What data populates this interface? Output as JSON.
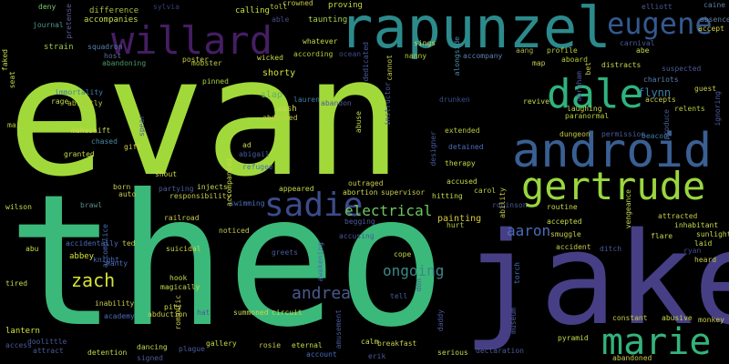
{
  "words": [
    {
      "text": "evan",
      "color": "#a2d93a"
    },
    {
      "text": "theo",
      "color": "#3bb97a"
    },
    {
      "text": "jake",
      "color": "#463f85"
    },
    {
      "text": "rapunzel",
      "color": "#2c8a8c"
    },
    {
      "text": "android",
      "color": "#3a5f92"
    },
    {
      "text": "willard",
      "color": "#451e63"
    },
    {
      "text": "eugene",
      "color": "#34598f"
    },
    {
      "text": "dale",
      "color": "#2fb37e"
    },
    {
      "text": "gertrude",
      "color": "#9ad63e"
    },
    {
      "text": "sadie",
      "color": "#3d4b8b"
    },
    {
      "text": "marie",
      "color": "#34b37b"
    },
    {
      "text": "zach",
      "color": "#d4e236"
    },
    {
      "text": "andrea",
      "color": "#4a5a8e"
    },
    {
      "text": "electrical",
      "color": "#6dc660"
    },
    {
      "text": "ongoing",
      "color": "#3c8a8a"
    },
    {
      "text": "aaron",
      "color": "#4a6dba"
    },
    {
      "text": "flynn",
      "color": "#3c7fa8"
    },
    {
      "text": "painting",
      "color": "#d4c93a"
    },
    {
      "text": "difference",
      "color": "#a8bf3b"
    },
    {
      "text": "accompanies",
      "color": "#c7d84a"
    },
    {
      "text": "calling",
      "color": "#c3e13a"
    },
    {
      "text": "proving",
      "color": "#c2d53c"
    },
    {
      "text": "elliott",
      "color": "#4a5a9a"
    },
    {
      "text": "caine",
      "color": "#5a7fa0"
    },
    {
      "text": "deny",
      "color": "#7fc96a"
    },
    {
      "text": "journal",
      "color": "#51958a"
    },
    {
      "text": "sylvia",
      "color": "#353f7a"
    },
    {
      "text": "toll",
      "color": "#b8c93a"
    },
    {
      "text": "able",
      "color": "#4a4a8a"
    },
    {
      "text": "taunting",
      "color": "#a7d04a"
    },
    {
      "text": "absence",
      "color": "#5f7fa2"
    },
    {
      "text": "accept",
      "color": "#d0d04a"
    },
    {
      "text": "carnival",
      "color": "#4a5a9a"
    },
    {
      "text": "abe",
      "color": "#c3d94a"
    },
    {
      "text": "aang",
      "color": "#a8b04a"
    },
    {
      "text": "profile",
      "color": "#b8c93a"
    },
    {
      "text": "strain",
      "color": "#9ac94a"
    },
    {
      "text": "squadron",
      "color": "#5a7fb0"
    },
    {
      "text": "host",
      "color": "#5f6fa0"
    },
    {
      "text": "abandoning",
      "color": "#4d9a6a"
    },
    {
      "text": "poster",
      "color": "#c7c94a"
    },
    {
      "text": "mobster",
      "color": "#b8c93a"
    },
    {
      "text": "according",
      "color": "#b8c93a"
    },
    {
      "text": "ocean",
      "color": "#3d4b8b"
    },
    {
      "text": "nanny",
      "color": "#b8c93a"
    },
    {
      "text": "accompany",
      "color": "#5a7fb0"
    },
    {
      "text": "map",
      "color": "#c7c94a"
    },
    {
      "text": "aboard",
      "color": "#b8c93a"
    },
    {
      "text": "distracts",
      "color": "#c9d84a"
    },
    {
      "text": "suspected",
      "color": "#4a5a9a"
    },
    {
      "text": "chariots",
      "color": "#5a7fb0"
    },
    {
      "text": "guest",
      "color": "#c7c94a"
    },
    {
      "text": "immortality",
      "color": "#3c7fa8"
    },
    {
      "text": "rage",
      "color": "#c7d84a"
    },
    {
      "text": "abruptly",
      "color": "#b8c93a"
    },
    {
      "text": "pinned",
      "color": "#a8d04a"
    },
    {
      "text": "shorty",
      "color": "#d4e236"
    },
    {
      "text": "revive",
      "color": "#c7d84a"
    },
    {
      "text": "laughing",
      "color": "#c7d84a"
    },
    {
      "text": "paranormal",
      "color": "#b8c93a"
    },
    {
      "text": "accepts",
      "color": "#c7c94a"
    },
    {
      "text": "relents",
      "color": "#b8c93a"
    },
    {
      "text": "mail",
      "color": "#b8c93a"
    },
    {
      "text": "slap",
      "color": "#5fb06a"
    },
    {
      "text": "lauren",
      "color": "#3c7fa8"
    },
    {
      "text": "abandon",
      "color": "#4a5a9a"
    },
    {
      "text": "drunken",
      "color": "#3d4b8b"
    },
    {
      "text": "makeshift",
      "color": "#c7d84a"
    },
    {
      "text": "wash",
      "color": "#c7d84a"
    },
    {
      "text": "abducted",
      "color": "#c7c94a"
    },
    {
      "text": "chased",
      "color": "#4a8aa8"
    },
    {
      "text": "gift",
      "color": "#d4d04a"
    },
    {
      "text": "ad",
      "color": "#c7d84a"
    },
    {
      "text": "abigail",
      "color": "#4a5a9a"
    },
    {
      "text": "extended",
      "color": "#b8c93a"
    },
    {
      "text": "detained",
      "color": "#4a6dba"
    },
    {
      "text": "dungeon",
      "color": "#c7c94a"
    },
    {
      "text": "permission",
      "color": "#4a5a9a"
    },
    {
      "text": "beacon",
      "color": "#3c7fa8"
    },
    {
      "text": "granted",
      "color": "#c7d84a"
    },
    {
      "text": "refugee",
      "color": "#4a6dba"
    },
    {
      "text": "therapy",
      "color": "#c7d84a"
    },
    {
      "text": "shout",
      "color": "#c7d84a"
    },
    {
      "text": "partying",
      "color": "#4a5a9a"
    },
    {
      "text": "injects",
      "color": "#c7d84a"
    },
    {
      "text": "appeared",
      "color": "#c7d84a"
    },
    {
      "text": "outraged",
      "color": "#c7c94a"
    },
    {
      "text": "accused",
      "color": "#c7d84a"
    },
    {
      "text": "carol",
      "color": "#b8c93a"
    },
    {
      "text": "wilson",
      "color": "#c7d84a"
    },
    {
      "text": "auto",
      "color": "#c7c94a"
    },
    {
      "text": "responsibility",
      "color": "#c7c94a"
    },
    {
      "text": "swimming",
      "color": "#4a6dba"
    },
    {
      "text": "abortion",
      "color": "#c7d84a"
    },
    {
      "text": "supervisor",
      "color": "#c7c94a"
    },
    {
      "text": "hitting",
      "color": "#c7d84a"
    },
    {
      "text": "robinson",
      "color": "#4a5a9a"
    },
    {
      "text": "routine",
      "color": "#c7d84a"
    },
    {
      "text": "born",
      "color": "#c7c94a"
    },
    {
      "text": "brawl",
      "color": "#5a8a8a"
    },
    {
      "text": "railroad",
      "color": "#c7c94a"
    },
    {
      "text": "begging",
      "color": "#4a5a9a"
    },
    {
      "text": "hurt",
      "color": "#b8c93a"
    },
    {
      "text": "accepted",
      "color": "#c7d84a"
    },
    {
      "text": "smuggle",
      "color": "#c7c94a"
    },
    {
      "text": "attracted",
      "color": "#c7c94a"
    },
    {
      "text": "inhabitant",
      "color": "#c7d84a"
    },
    {
      "text": "sunlight",
      "color": "#c7d84a"
    },
    {
      "text": "noticed",
      "color": "#c7c94a"
    },
    {
      "text": "accusing",
      "color": "#4a5a9a"
    },
    {
      "text": "abu",
      "color": "#c7d84a"
    },
    {
      "text": "accidentally",
      "color": "#4a6dba"
    },
    {
      "text": "ted",
      "color": "#c7c94a"
    },
    {
      "text": "suicidal",
      "color": "#c7d84a"
    },
    {
      "text": "greets",
      "color": "#4a5a9a"
    },
    {
      "text": "cope",
      "color": "#c7d84a"
    },
    {
      "text": "flare",
      "color": "#c7d84a"
    },
    {
      "text": "laid",
      "color": "#c7d84a"
    },
    {
      "text": "ryan",
      "color": "#3d4b8b"
    },
    {
      "text": "accident",
      "color": "#c7c94a"
    },
    {
      "text": "ditch",
      "color": "#4a5a9a"
    },
    {
      "text": "abbey",
      "color": "#d4e236"
    },
    {
      "text": "knight",
      "color": "#4a6dba"
    },
    {
      "text": "nanty",
      "color": "#4a6dba"
    },
    {
      "text": "heard",
      "color": "#c7c94a"
    },
    {
      "text": "tired",
      "color": "#c7d84a"
    },
    {
      "text": "hook",
      "color": "#c7d84a"
    },
    {
      "text": "magically",
      "color": "#c7d84a"
    },
    {
      "text": "tell",
      "color": "#4a5a9a"
    },
    {
      "text": "inability",
      "color": "#c7c94a"
    },
    {
      "text": "academy",
      "color": "#4a6dba"
    },
    {
      "text": "pity",
      "color": "#c7d84a"
    },
    {
      "text": "abduction",
      "color": "#c7c94a"
    },
    {
      "text": "hat",
      "color": "#4a5a9a"
    },
    {
      "text": "summoned",
      "color": "#c7d84a"
    },
    {
      "text": "circuit",
      "color": "#c7d84a"
    },
    {
      "text": "constant",
      "color": "#c7c94a"
    },
    {
      "text": "pyramid",
      "color": "#c7d84a"
    },
    {
      "text": "abusive",
      "color": "#c7d84a"
    },
    {
      "text": "monkey",
      "color": "#c7c94a"
    },
    {
      "text": "lantern",
      "color": "#d4e236"
    },
    {
      "text": "gallery",
      "color": "#c7d84a"
    },
    {
      "text": "rosie",
      "color": "#c7c94a"
    },
    {
      "text": "eternal",
      "color": "#c7d84a"
    },
    {
      "text": "calm",
      "color": "#c7d84a"
    },
    {
      "text": "breakfast",
      "color": "#c7c94a"
    },
    {
      "text": "declaration",
      "color": "#4a5a9a"
    },
    {
      "text": "attract",
      "color": "#4a5a9a"
    },
    {
      "text": "detention",
      "color": "#c7d84a"
    },
    {
      "text": "dancing",
      "color": "#c7d84a"
    },
    {
      "text": "plague",
      "color": "#4a5a9a"
    },
    {
      "text": "account",
      "color": "#4a6dba"
    },
    {
      "text": "serious",
      "color": "#c7d84a"
    },
    {
      "text": "erik",
      "color": "#4a5a9a"
    },
    {
      "text": "abandoned",
      "color": "#c7c94a"
    },
    {
      "text": "signed",
      "color": "#4a5a9a"
    },
    {
      "text": "access",
      "color": "#4a5a9a"
    },
    {
      "text": "doolittle",
      "color": "#4a5a9a"
    },
    {
      "text": "whatever",
      "color": "#c7d84a"
    },
    {
      "text": "crowned",
      "color": "#c7c94a"
    },
    {
      "text": "wicked",
      "color": "#c7d84a"
    },
    {
      "text": "sings",
      "color": "#c7d84a"
    },
    {
      "text": "alongside",
      "color": "#4a8aa8"
    },
    {
      "text": "dedicated",
      "color": "#4a5a9a"
    },
    {
      "text": "cannot",
      "color": "#c7c94a"
    },
    {
      "text": "instructor",
      "color": "#4a5a9a"
    },
    {
      "text": "abuse",
      "color": "#c7d84a"
    },
    {
      "text": "spear",
      "color": "#4a5a9a"
    },
    {
      "text": "awakening",
      "color": "#4a6dba"
    },
    {
      "text": "museum",
      "color": "#4a5a9a"
    },
    {
      "text": "torch",
      "color": "#4a6dba"
    },
    {
      "text": "seat",
      "color": "#c7d84a"
    },
    {
      "text": "faked",
      "color": "#c7d84a"
    },
    {
      "text": "pretense",
      "color": "#5f5fa0"
    },
    {
      "text": "abraham",
      "color": "#4a5a9a"
    },
    {
      "text": "bet",
      "color": "#c7c94a"
    },
    {
      "text": "ignoring",
      "color": "#4a5a9a"
    },
    {
      "text": "vengeance",
      "color": "#c7d84a"
    },
    {
      "text": "produce",
      "color": "#4a5a9a"
    },
    {
      "text": "designer",
      "color": "#4a5a9a"
    },
    {
      "text": "ability",
      "color": "#c7c94a"
    },
    {
      "text": "accompanied",
      "color": "#c7d84a"
    },
    {
      "text": "accomplice",
      "color": "#4a6dba"
    },
    {
      "text": "romantic",
      "color": "#c7c94a"
    },
    {
      "text": "don",
      "color": "#4a5a9a"
    },
    {
      "text": "daddy",
      "color": "#4a5a9a"
    },
    {
      "text": "amusement",
      "color": "#4a5a9a"
    }
  ]
}
